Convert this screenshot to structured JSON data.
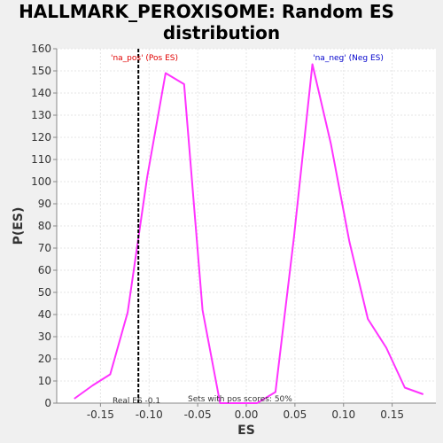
{
  "chart_data": {
    "type": "line",
    "title_line1": "HALLMARK_PEROXISOME: Random ES",
    "title_line2": "distribution",
    "xlabel": "ES",
    "ylabel": "P(ES)",
    "xlim": [
      -0.195,
      0.195
    ],
    "ylim": [
      0,
      160
    ],
    "xticks": [
      -0.15,
      -0.1,
      -0.05,
      0.0,
      0.05,
      0.1,
      0.15
    ],
    "xtick_labels": [
      "-0.15",
      "-0.10",
      "-0.05",
      "0.00",
      "0.05",
      "0.10",
      "0.15"
    ],
    "yticks": [
      0,
      10,
      20,
      30,
      40,
      50,
      60,
      70,
      80,
      90,
      100,
      110,
      120,
      130,
      140,
      150,
      160
    ],
    "ytick_labels": [
      "0",
      "10",
      "20",
      "30",
      "40",
      "50",
      "60",
      "70",
      "80",
      "90",
      "100",
      "110",
      "120",
      "130",
      "140",
      "150",
      "160"
    ],
    "grid": true,
    "series": [
      {
        "color": "#ff33ff",
        "x": [
          -0.177,
          -0.158,
          -0.14,
          -0.122,
          -0.102,
          -0.083,
          -0.064,
          -0.045,
          -0.027,
          -0.008,
          0.011,
          0.03,
          0.049,
          0.068,
          0.087,
          0.106,
          0.125,
          0.144,
          0.163,
          0.182
        ],
        "y": [
          2,
          8,
          13,
          41,
          102,
          149,
          144,
          42,
          0,
          0,
          0,
          5,
          75,
          153,
          117,
          73,
          38,
          25,
          7,
          4
        ]
      }
    ],
    "real_es": -0.111,
    "real_es_color": "#000000",
    "annotations": {
      "pos_label": "'na_pos' (Pos ES)",
      "pos_color": "#e00000",
      "neg_label": "'na_neg' (Neg ES)",
      "neg_color": "#0000cc",
      "real_es_label": "Real ES -0.1",
      "pos_scores_label": "Sets with pos scores: 50%"
    }
  }
}
